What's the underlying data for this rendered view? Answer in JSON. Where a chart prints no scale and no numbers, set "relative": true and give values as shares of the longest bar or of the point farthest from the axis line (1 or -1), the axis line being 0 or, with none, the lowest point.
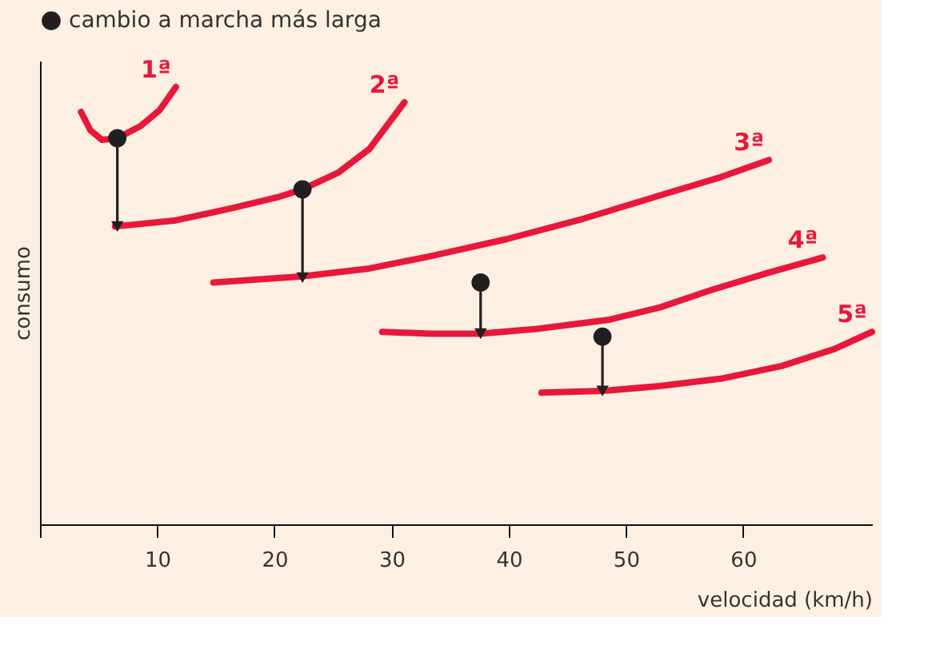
{
  "chart_data": {
    "type": "line",
    "relative": true,
    "xlabel": "velocidad (km/h)",
    "ylabel": "consumo",
    "xlim": [
      0,
      71
    ],
    "xticks": [
      {
        "value": 0,
        "label": null
      },
      10,
      20,
      30,
      40,
      50,
      60
    ],
    "grid": false,
    "legend": "top",
    "line_style": "solid",
    "series": [
      {
        "name": "1ª",
        "color": "#e8183a",
        "x": [
          3.5,
          4.3,
          5.3,
          6.6,
          8.6,
          10.2,
          11.6
        ],
        "values": [
          0.943,
          0.901,
          0.879,
          0.883,
          0.911,
          0.947,
          1.0
        ]
      },
      {
        "name": "2ª",
        "color": "#e8183a",
        "x": [
          6.4,
          11.6,
          16.4,
          20.3,
          22.4,
          25.5,
          28.1,
          31.1
        ],
        "values": [
          0.681,
          0.695,
          0.723,
          0.748,
          0.766,
          0.805,
          0.858,
          0.965
        ]
      },
      {
        "name": "3ª",
        "color": "#e8183a",
        "x": [
          14.8,
          22.4,
          28.1,
          33.3,
          39.8,
          46.4,
          52.9,
          58.1,
          62.2
        ],
        "values": [
          0.553,
          0.567,
          0.585,
          0.613,
          0.652,
          0.699,
          0.752,
          0.794,
          0.833
        ]
      },
      {
        "name": "4ª",
        "color": "#e8183a",
        "x": [
          29.2,
          33.3,
          37.6,
          42.4,
          48.6,
          52.9,
          57.2,
          62.0,
          66.8
        ],
        "values": [
          0.44,
          0.436,
          0.436,
          0.447,
          0.468,
          0.496,
          0.535,
          0.574,
          0.61
        ]
      },
      {
        "name": "5ª",
        "color": "#e8183a",
        "x": [
          42.8,
          48.0,
          52.9,
          58.1,
          63.3,
          67.8,
          71.0
        ],
        "values": [
          0.301,
          0.305,
          0.316,
          0.333,
          0.362,
          0.401,
          0.44
        ]
      },
      {
        "name": "cambio a marcha más larga",
        "type": "scatter",
        "marker": "circle",
        "color": "#231f20",
        "x": [
          6.6,
          22.4,
          37.6,
          48.0
        ],
        "values": [
          0.883,
          0.766,
          0.553,
          0.429
        ]
      },
      {
        "type": "line",
        "marker": "triangle",
        "color": "#231f20",
        "x": [
          6.6,
          6.6
        ],
        "values": [
          0.883,
          0.681
        ]
      },
      {
        "type": "line",
        "marker": "triangle",
        "color": "#231f20",
        "x": [
          22.4,
          22.4
        ],
        "values": [
          0.766,
          0.564
        ]
      },
      {
        "type": "line",
        "marker": "triangle",
        "color": "#231f20",
        "x": [
          37.6,
          37.6
        ],
        "values": [
          0.553,
          0.436
        ]
      },
      {
        "type": "line",
        "marker": "triangle",
        "color": "#231f20",
        "x": [
          48.0,
          48.0
        ],
        "values": [
          0.429,
          0.305
        ]
      }
    ]
  }
}
